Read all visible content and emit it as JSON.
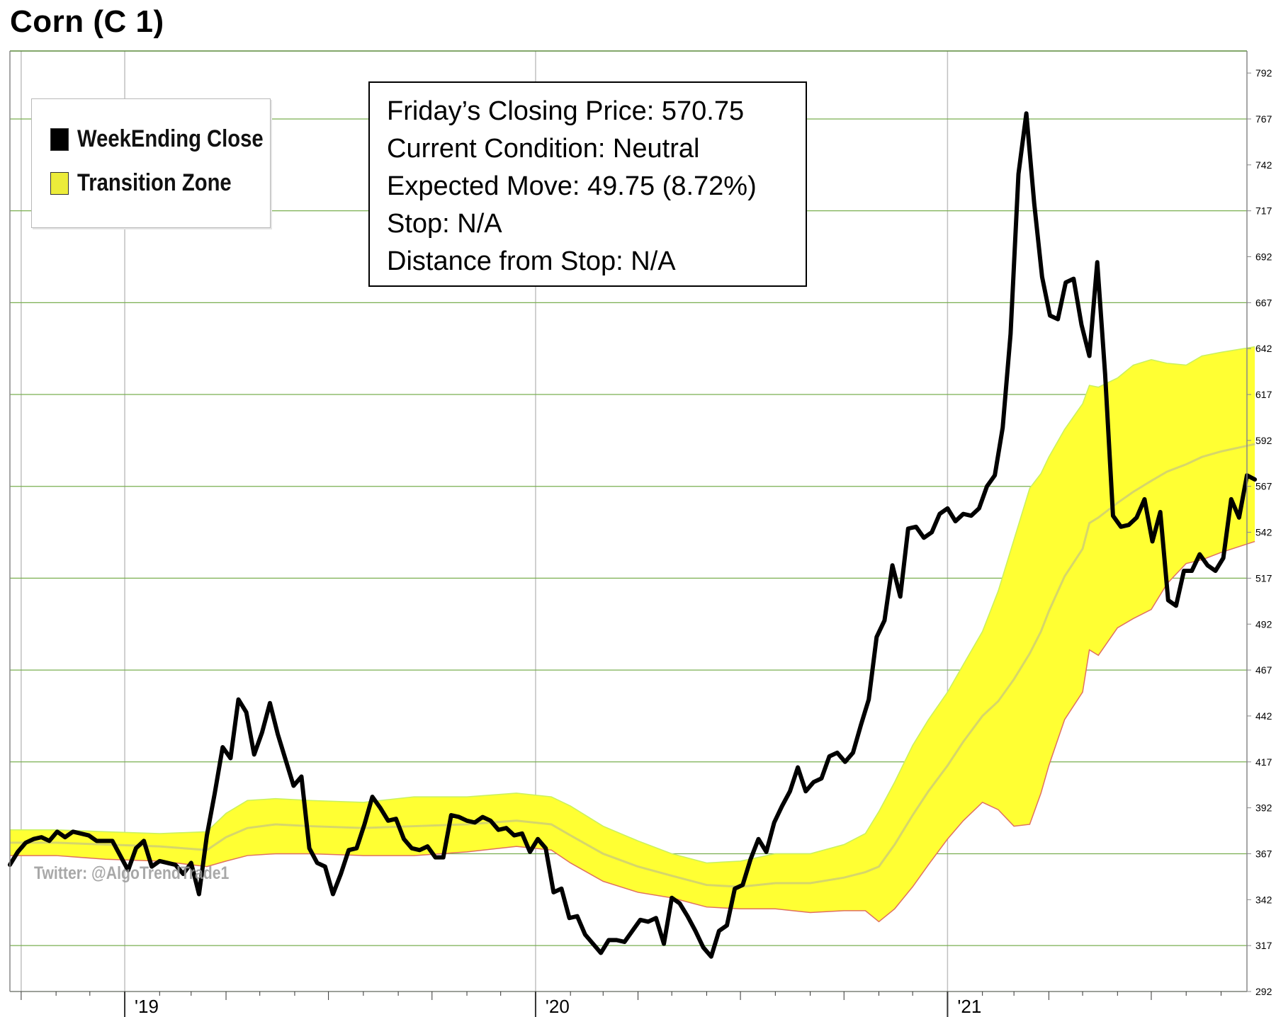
{
  "chart_title": "Corn (C 1)",
  "legend": {
    "items": [
      {
        "label": "WeekEnding Close",
        "color": "#000000"
      },
      {
        "label": "Transition Zone",
        "color": "#ecec3a"
      }
    ]
  },
  "info_box": {
    "closing_price": "Friday’s Closing Price: 570.75",
    "condition": "Current Condition: Neutral",
    "expected_move": "Expected Move: 49.75 (8.72%)",
    "stop": "Stop: N/A",
    "distance_from_stop": "Distance from Stop: N/A"
  },
  "watermark": "Twitter: @AlgoTrendTrade1",
  "colors": {
    "price_line": "#000000",
    "zone_fill": "#ffff33",
    "zone_upper_edge": "#c8f060",
    "zone_lower_edge": "#e07060",
    "zone_mid_line": "#d6d66a",
    "grid_horizontal": "#7aaf50",
    "grid_vertical": "#c0c0c0"
  },
  "chart_data": {
    "type": "line",
    "y_axis": {
      "side": "right",
      "ylim": [
        292,
        804
      ],
      "ticks": [
        292,
        317,
        342,
        367,
        392,
        417,
        442,
        467,
        492,
        517,
        542,
        567,
        592,
        617,
        642,
        667,
        692,
        717,
        742,
        767,
        792
      ]
    },
    "x_axis": {
      "xlim": [
        "2018-09-21",
        "2021-09-24"
      ],
      "labels": [
        {
          "date": "2019-01-01",
          "text": "'19"
        },
        {
          "date": "2020-01-01",
          "text": "'20"
        },
        {
          "date": "2021-01-01",
          "text": "'21"
        }
      ]
    },
    "grid": true,
    "legend_position": "top-left",
    "series": [
      {
        "name": "WeekEnding Close",
        "style": "line",
        "points": [
          [
            "2018-09-21",
            361
          ],
          [
            "2018-09-28",
            368
          ],
          [
            "2018-10-05",
            373
          ],
          [
            "2018-10-12",
            375
          ],
          [
            "2018-10-19",
            376
          ],
          [
            "2018-10-26",
            374
          ],
          [
            "2018-11-02",
            379
          ],
          [
            "2018-11-09",
            376
          ],
          [
            "2018-11-16",
            379
          ],
          [
            "2018-11-23",
            378
          ],
          [
            "2018-11-30",
            377
          ],
          [
            "2018-12-07",
            374
          ],
          [
            "2018-12-14",
            374
          ],
          [
            "2018-12-21",
            374
          ],
          [
            "2018-12-28",
            366
          ],
          [
            "2019-01-04",
            358
          ],
          [
            "2019-01-11",
            370
          ],
          [
            "2019-01-18",
            374
          ],
          [
            "2019-01-25",
            360
          ],
          [
            "2019-02-01",
            363
          ],
          [
            "2019-02-08",
            362
          ],
          [
            "2019-02-15",
            361
          ],
          [
            "2019-02-22",
            356
          ],
          [
            "2019-03-01",
            362
          ],
          [
            "2019-03-08",
            345
          ],
          [
            "2019-03-15",
            377
          ],
          [
            "2019-03-22",
            400
          ],
          [
            "2019-03-29",
            425
          ],
          [
            "2019-04-05",
            419
          ],
          [
            "2019-04-12",
            451
          ],
          [
            "2019-04-19",
            444
          ],
          [
            "2019-04-26",
            421
          ],
          [
            "2019-05-03",
            433
          ],
          [
            "2019-05-10",
            449
          ],
          [
            "2019-05-17",
            432
          ],
          [
            "2019-05-24",
            418
          ],
          [
            "2019-05-31",
            404
          ],
          [
            "2019-06-07",
            409
          ],
          [
            "2019-06-14",
            370
          ],
          [
            "2019-06-21",
            362
          ],
          [
            "2019-06-28",
            360
          ],
          [
            "2019-07-05",
            345
          ],
          [
            "2019-07-12",
            356
          ],
          [
            "2019-07-19",
            369
          ],
          [
            "2019-07-26",
            370
          ],
          [
            "2019-08-02",
            383
          ],
          [
            "2019-08-09",
            398
          ],
          [
            "2019-08-16",
            392
          ],
          [
            "2019-08-23",
            385
          ],
          [
            "2019-08-30",
            386
          ],
          [
            "2019-09-06",
            375
          ],
          [
            "2019-09-13",
            370
          ],
          [
            "2019-09-20",
            369
          ],
          [
            "2019-09-27",
            371
          ],
          [
            "2019-10-04",
            365
          ],
          [
            "2019-10-11",
            365
          ],
          [
            "2019-10-18",
            388
          ],
          [
            "2019-10-25",
            387
          ],
          [
            "2019-11-01",
            385
          ],
          [
            "2019-11-08",
            384
          ],
          [
            "2019-11-15",
            387
          ],
          [
            "2019-11-22",
            385
          ],
          [
            "2019-11-29",
            380
          ],
          [
            "2019-12-06",
            381
          ],
          [
            "2019-12-13",
            377
          ],
          [
            "2019-12-20",
            378
          ],
          [
            "2019-12-27",
            368
          ],
          [
            "2020-01-03",
            375
          ],
          [
            "2020-01-10",
            370
          ],
          [
            "2020-01-17",
            346
          ],
          [
            "2020-01-24",
            348
          ],
          [
            "2020-01-31",
            332
          ],
          [
            "2020-02-07",
            333
          ],
          [
            "2020-02-14",
            323
          ],
          [
            "2020-02-21",
            318
          ],
          [
            "2020-02-28",
            313
          ],
          [
            "2020-03-06",
            320
          ],
          [
            "2020-03-13",
            320
          ],
          [
            "2020-03-20",
            319
          ],
          [
            "2020-03-27",
            325
          ],
          [
            "2020-04-03",
            331
          ],
          [
            "2020-04-10",
            330
          ],
          [
            "2020-04-17",
            332
          ],
          [
            "2020-04-24",
            318
          ],
          [
            "2020-05-01",
            343
          ],
          [
            "2020-05-08",
            340
          ],
          [
            "2020-05-15",
            333
          ],
          [
            "2020-05-22",
            325
          ],
          [
            "2020-05-29",
            316
          ],
          [
            "2020-06-05",
            311
          ],
          [
            "2020-06-12",
            325
          ],
          [
            "2020-06-19",
            328
          ],
          [
            "2020-06-26",
            348
          ],
          [
            "2020-07-03",
            350
          ],
          [
            "2020-07-10",
            364
          ],
          [
            "2020-07-17",
            375
          ],
          [
            "2020-07-24",
            368
          ],
          [
            "2020-07-31",
            384
          ],
          [
            "2020-08-07",
            393
          ],
          [
            "2020-08-14",
            401
          ],
          [
            "2020-08-21",
            414
          ],
          [
            "2020-08-28",
            401
          ],
          [
            "2020-09-04",
            406
          ],
          [
            "2020-09-11",
            408
          ],
          [
            "2020-09-18",
            420
          ],
          [
            "2020-09-25",
            422
          ],
          [
            "2020-10-02",
            417
          ],
          [
            "2020-10-09",
            422
          ],
          [
            "2020-10-16",
            437
          ],
          [
            "2020-10-23",
            451
          ],
          [
            "2020-10-30",
            485
          ],
          [
            "2020-11-06",
            494
          ],
          [
            "2020-11-13",
            524
          ],
          [
            "2020-11-20",
            507
          ],
          [
            "2020-11-27",
            544
          ],
          [
            "2020-12-04",
            545
          ],
          [
            "2020-12-11",
            539
          ],
          [
            "2020-12-18",
            542
          ],
          [
            "2020-12-25",
            552
          ],
          [
            "2021-01-01",
            555
          ],
          [
            "2021-01-08",
            548
          ],
          [
            "2021-01-15",
            552
          ],
          [
            "2021-01-22",
            551
          ],
          [
            "2021-01-29",
            555
          ],
          [
            "2021-02-05",
            567
          ],
          [
            "2021-02-12",
            573
          ],
          [
            "2021-02-19",
            599
          ],
          [
            "2021-02-26",
            650
          ],
          [
            "2021-03-05",
            737
          ],
          [
            "2021-03-12",
            770
          ],
          [
            "2021-03-19",
            721
          ],
          [
            "2021-03-26",
            681
          ],
          [
            "2021-04-02",
            660
          ],
          [
            "2021-04-09",
            658
          ],
          [
            "2021-04-16",
            678
          ],
          [
            "2021-04-23",
            680
          ],
          [
            "2021-04-30",
            655
          ],
          [
            "2021-05-07",
            638
          ],
          [
            "2021-05-14",
            689
          ],
          [
            "2021-05-21",
            628
          ],
          [
            "2021-05-28",
            551
          ],
          [
            "2021-06-04",
            545
          ],
          [
            "2021-06-11",
            546
          ],
          [
            "2021-06-18",
            550
          ],
          [
            "2021-06-25",
            560
          ],
          [
            "2021-07-02",
            537
          ],
          [
            "2021-07-09",
            553
          ],
          [
            "2021-07-16",
            505
          ],
          [
            "2021-07-23",
            502
          ],
          [
            "2021-07-30",
            521
          ],
          [
            "2021-08-06",
            521
          ],
          [
            "2021-08-13",
            530
          ],
          [
            "2021-08-20",
            524
          ],
          [
            "2021-08-27",
            521
          ],
          [
            "2021-09-03",
            528
          ],
          [
            "2021-09-10",
            560
          ],
          [
            "2021-09-17",
            550
          ],
          [
            "2021-09-24",
            573
          ],
          [
            "2021-10-01",
            570.75
          ]
        ]
      },
      {
        "name": "Transition Zone",
        "style": "band",
        "points": [
          [
            "2018-09-21",
            366,
            380,
            373
          ],
          [
            "2018-11-01",
            366,
            380,
            373
          ],
          [
            "2018-12-15",
            364,
            379,
            372
          ],
          [
            "2019-02-01",
            363,
            378,
            371
          ],
          [
            "2019-03-15",
            360,
            379,
            369
          ],
          [
            "2019-04-01",
            363,
            389,
            376
          ],
          [
            "2019-04-20",
            366,
            396,
            381
          ],
          [
            "2019-05-15",
            367,
            397,
            383
          ],
          [
            "2019-06-15",
            367,
            396,
            382
          ],
          [
            "2019-08-01",
            366,
            395,
            381
          ],
          [
            "2019-09-15",
            366,
            398,
            382
          ],
          [
            "2019-11-01",
            368,
            398,
            383
          ],
          [
            "2019-12-15",
            371,
            400,
            385
          ],
          [
            "2020-01-15",
            369,
            398,
            383
          ],
          [
            "2020-02-01",
            362,
            393,
            377
          ],
          [
            "2020-03-01",
            352,
            382,
            367
          ],
          [
            "2020-04-01",
            346,
            374,
            360
          ],
          [
            "2020-05-01",
            343,
            367,
            355
          ],
          [
            "2020-06-01",
            338,
            362,
            350
          ],
          [
            "2020-07-01",
            337,
            363,
            349
          ],
          [
            "2020-08-01",
            337,
            367,
            351
          ],
          [
            "2020-09-01",
            335,
            367,
            351
          ],
          [
            "2020-10-01",
            336,
            372,
            354
          ],
          [
            "2020-10-20",
            336,
            378,
            357
          ],
          [
            "2020-11-01",
            330,
            390,
            360
          ],
          [
            "2020-11-15",
            337,
            406,
            372
          ],
          [
            "2020-12-01",
            349,
            426,
            388
          ],
          [
            "2020-12-15",
            361,
            440,
            401
          ],
          [
            "2021-01-01",
            375,
            455,
            415
          ],
          [
            "2021-01-15",
            385,
            470,
            428
          ],
          [
            "2021-02-01",
            395,
            488,
            442
          ],
          [
            "2021-02-15",
            391,
            510,
            450
          ],
          [
            "2021-03-01",
            382,
            538,
            462
          ],
          [
            "2021-03-15",
            383,
            566,
            476
          ],
          [
            "2021-03-25",
            400,
            574,
            488
          ],
          [
            "2021-04-01",
            415,
            583,
            499
          ],
          [
            "2021-04-15",
            440,
            598,
            518
          ],
          [
            "2021-05-01",
            455,
            612,
            533
          ],
          [
            "2021-05-07",
            478,
            622,
            547
          ],
          [
            "2021-05-15",
            475,
            621,
            550
          ],
          [
            "2021-06-01",
            490,
            626,
            558
          ],
          [
            "2021-06-15",
            495,
            633,
            564
          ],
          [
            "2021-07-01",
            500,
            636,
            570
          ],
          [
            "2021-07-15",
            514,
            634,
            575
          ],
          [
            "2021-08-01",
            525,
            633,
            579
          ],
          [
            "2021-08-15",
            527,
            638,
            583
          ],
          [
            "2021-09-01",
            531,
            640,
            586
          ],
          [
            "2021-10-01",
            537,
            643,
            590
          ]
        ]
      }
    ]
  }
}
